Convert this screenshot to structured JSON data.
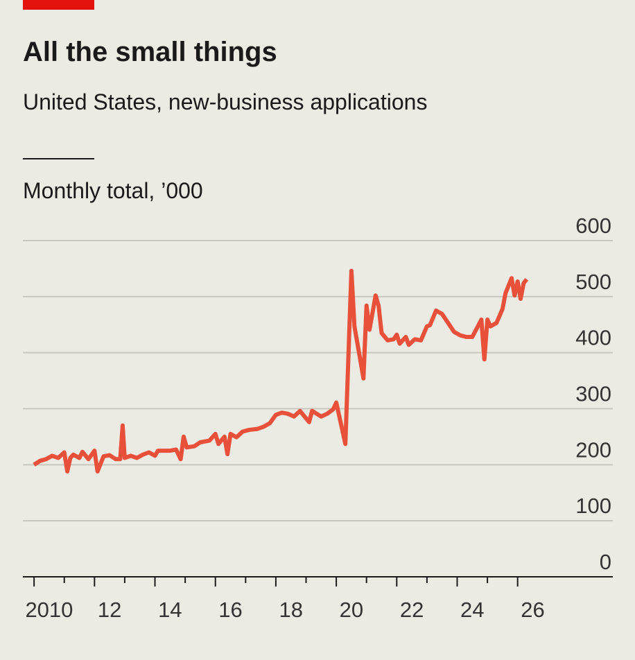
{
  "chart_data": {
    "type": "line",
    "title": "All the small things",
    "subtitle": "United States, new-business applications",
    "y_label": "Monthly total, ’000",
    "color": "#e8503a",
    "grid": true,
    "xlim": [
      2009.63,
      2029.15
    ],
    "xticks": [
      {
        "value": 2010,
        "label": "2010"
      },
      {
        "value": 2012,
        "label": "12"
      },
      {
        "value": 2014,
        "label": "14"
      },
      {
        "value": 2016,
        "label": "16"
      },
      {
        "value": 2018,
        "label": "18"
      },
      {
        "value": 2020,
        "label": "20"
      },
      {
        "value": 2022,
        "label": "22"
      },
      {
        "value": 2024,
        "label": "24"
      },
      {
        "value": 2026,
        "label": "26"
      }
    ],
    "ylim": [
      0,
      600
    ],
    "yticks": [
      0,
      100,
      200,
      300,
      400,
      500,
      600
    ],
    "x": [
      2010.0,
      2010.2,
      2010.4,
      2010.6,
      2010.8,
      2011.0,
      2011.1,
      2011.2,
      2011.3,
      2011.5,
      2011.6,
      2011.8,
      2012.0,
      2012.1,
      2012.3,
      2012.5,
      2012.7,
      2012.85,
      2012.93,
      2013.0,
      2013.2,
      2013.4,
      2013.6,
      2013.8,
      2014.0,
      2014.1,
      2014.3,
      2014.5,
      2014.7,
      2014.85,
      2014.95,
      2015.05,
      2015.3,
      2015.5,
      2015.8,
      2016.0,
      2016.1,
      2016.3,
      2016.4,
      2016.5,
      2016.7,
      2016.9,
      2017.1,
      2017.4,
      2017.6,
      2017.8,
      2018.0,
      2018.2,
      2018.4,
      2018.6,
      2018.8,
      2019.1,
      2019.2,
      2019.5,
      2019.7,
      2019.9,
      2020.0,
      2020.1,
      2020.2,
      2020.3,
      2020.5,
      2020.6,
      2020.8,
      2020.9,
      2021.0,
      2021.1,
      2021.3,
      2021.4,
      2021.5,
      2021.7,
      2021.9,
      2022.0,
      2022.1,
      2022.3,
      2022.4,
      2022.6,
      2022.8,
      2023.0,
      2023.1,
      2023.3,
      2023.5,
      2023.7,
      2023.9,
      2024.1,
      2024.3,
      2024.5,
      2024.8,
      2024.9,
      2025.0,
      2025.1,
      2025.3,
      2025.5,
      2025.6,
      2025.8,
      2025.9,
      2026.0,
      2026.1,
      2026.2,
      2026.3
    ],
    "values": [
      200,
      207,
      210,
      216,
      212,
      222,
      188,
      212,
      218,
      212,
      223,
      210,
      225,
      188,
      215,
      217,
      210,
      210,
      270,
      212,
      216,
      212,
      218,
      222,
      216,
      225,
      225,
      225,
      227,
      210,
      250,
      231,
      233,
      240,
      243,
      255,
      237,
      250,
      219,
      255,
      249,
      259,
      262,
      264,
      268,
      274,
      289,
      293,
      291,
      286,
      296,
      276,
      296,
      286,
      291,
      299,
      311,
      286,
      262,
      237,
      546,
      447,
      385,
      354,
      484,
      441,
      502,
      484,
      435,
      422,
      424,
      432,
      416,
      428,
      414,
      424,
      422,
      447,
      449,
      475,
      469,
      453,
      437,
      431,
      428,
      428,
      459,
      388,
      459,
      447,
      453,
      478,
      506,
      533,
      502,
      527,
      496,
      524,
      531
    ]
  }
}
